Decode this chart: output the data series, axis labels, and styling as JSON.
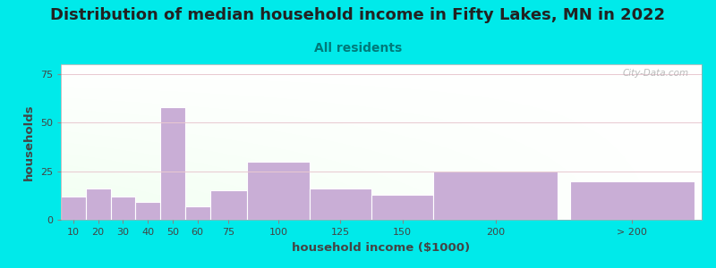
{
  "title": "Distribution of median household income in Fifty Lakes, MN in 2022",
  "subtitle": "All residents",
  "xlabel": "household income ($1000)",
  "ylabel": "households",
  "bar_labels": [
    "10",
    "20",
    "30",
    "40",
    "50",
    "60",
    "75",
    "100",
    "125",
    "150",
    "200",
    "> 200"
  ],
  "bar_values": [
    12,
    16,
    12,
    9,
    58,
    7,
    15,
    30,
    16,
    13,
    25,
    20
  ],
  "bar_color": "#c9aed6",
  "ylim": [
    0,
    80
  ],
  "yticks": [
    0,
    25,
    50,
    75
  ],
  "background_color": "#00eaea",
  "watermark": "City-Data.com",
  "title_fontsize": 13,
  "subtitle_fontsize": 10,
  "subtitle_color": "#007a7a",
  "axis_label_fontsize": 9.5,
  "tick_fontsize": 8,
  "bar_lefts": [
    0,
    10,
    20,
    30,
    40,
    50,
    60,
    75,
    100,
    125,
    150,
    205
  ],
  "bar_widths": [
    10,
    10,
    10,
    10,
    10,
    10,
    15,
    25,
    25,
    25,
    50,
    50
  ],
  "xlim_left": 0,
  "xlim_right": 258
}
